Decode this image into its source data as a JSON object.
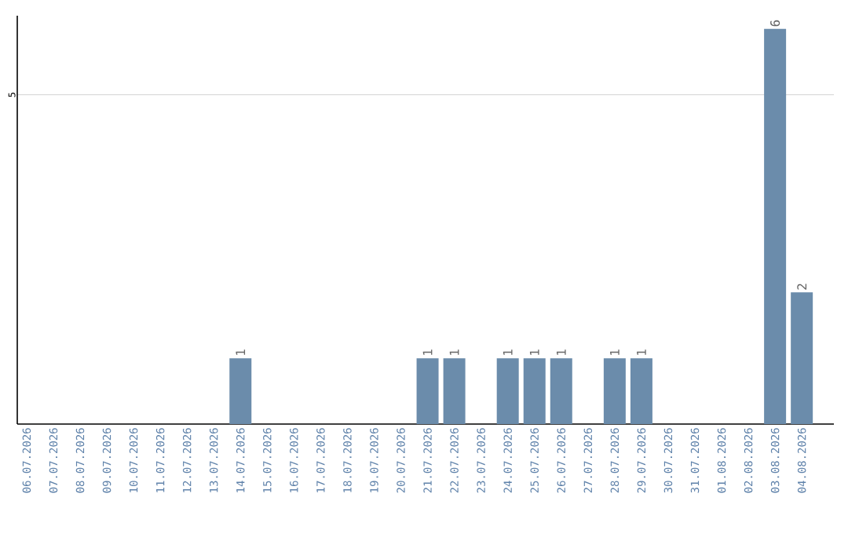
{
  "chart_data": {
    "type": "bar",
    "categories": [
      "06.07.2026",
      "07.07.2026",
      "08.07.2026",
      "09.07.2026",
      "10.07.2026",
      "11.07.2026",
      "12.07.2026",
      "13.07.2026",
      "14.07.2026",
      "15.07.2026",
      "16.07.2026",
      "17.07.2026",
      "18.07.2026",
      "19.07.2026",
      "20.07.2026",
      "21.07.2026",
      "22.07.2026",
      "23.07.2026",
      "24.07.2026",
      "25.07.2026",
      "26.07.2026",
      "27.07.2026",
      "28.07.2026",
      "29.07.2026",
      "30.07.2026",
      "31.07.2026",
      "01.08.2026",
      "02.08.2026",
      "03.08.2026",
      "04.08.2026"
    ],
    "values": [
      0,
      0,
      0,
      0,
      0,
      0,
      0,
      0,
      1,
      0,
      0,
      0,
      0,
      0,
      0,
      1,
      1,
      0,
      1,
      1,
      1,
      0,
      1,
      1,
      0,
      0,
      0,
      0,
      6,
      2
    ],
    "value_labels": [
      null,
      null,
      null,
      null,
      null,
      null,
      null,
      null,
      "1",
      null,
      null,
      null,
      null,
      null,
      null,
      "1",
      "1",
      null,
      "1",
      "1",
      "1",
      null,
      "1",
      "1",
      null,
      null,
      null,
      null,
      "6",
      "2"
    ],
    "color": "#6b8cab",
    "ylim": [
      0,
      6.2
    ],
    "yticks": [
      5
    ],
    "grid": "y"
  }
}
